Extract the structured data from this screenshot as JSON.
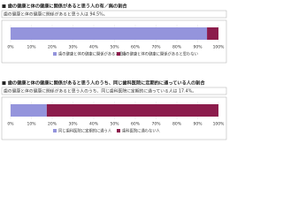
{
  "chart_data": [
    {
      "type": "bar",
      "orientation": "horizontal",
      "stacked": true,
      "title": "■ 歯の健康と体の健康に関係があると思う人の有／無の割合",
      "subtitle": "歯の健康と体の健康に関係があると思う人は 94.5%。",
      "series": [
        {
          "name": "歯の健康と体の健康に関係があると思う",
          "color": "#9494dc",
          "values": [
            94.5
          ]
        },
        {
          "name": "歯の健康と体の健康に関係があると思わない",
          "color": "#8c1c4c",
          "values": [
            5.5
          ]
        }
      ],
      "xlim": [
        0,
        100
      ],
      "xticks": [
        {
          "value": 0,
          "label": "0%"
        },
        {
          "value": 10,
          "label": "10%"
        },
        {
          "value": 20,
          "label": "20%"
        },
        {
          "value": 30,
          "label": "30%"
        },
        {
          "value": 40,
          "label": "40%"
        },
        {
          "value": 50,
          "label": "50%"
        },
        {
          "value": 60,
          "label": "60%"
        },
        {
          "value": 70,
          "label": "70%"
        },
        {
          "value": 80,
          "label": "80%"
        },
        {
          "value": 90,
          "label": "90%"
        },
        {
          "value": 100,
          "label": "100%"
        }
      ]
    },
    {
      "type": "bar",
      "orientation": "horizontal",
      "stacked": true,
      "title": "■ 歯の健康と体の健康に関係があると思う人のうち、同じ歯科医院に定期的に通っている人の割合",
      "subtitle": "歯の健康と体の健康に関係があると思う人のうち、同じ歯科医院に定期的に通っている人は 17.4%。",
      "series": [
        {
          "name": "同じ歯科医院に定期的に通う人",
          "color": "#9494dc",
          "values": [
            17.4
          ]
        },
        {
          "name": "歯科医院に通わない人",
          "color": "#8c1c4c",
          "values": [
            82.6
          ]
        }
      ],
      "xlim": [
        0,
        100
      ],
      "xticks": [
        {
          "value": 0,
          "label": "0%"
        },
        {
          "value": 10,
          "label": "10%"
        },
        {
          "value": 20,
          "label": "20%"
        },
        {
          "value": 30,
          "label": "30%"
        },
        {
          "value": 40,
          "label": "40%"
        },
        {
          "value": 50,
          "label": "50%"
        },
        {
          "value": 60,
          "label": "60%"
        },
        {
          "value": 70,
          "label": "70%"
        },
        {
          "value": 80,
          "label": "80%"
        },
        {
          "value": 90,
          "label": "90%"
        },
        {
          "value": 100,
          "label": "100%"
        }
      ]
    }
  ]
}
